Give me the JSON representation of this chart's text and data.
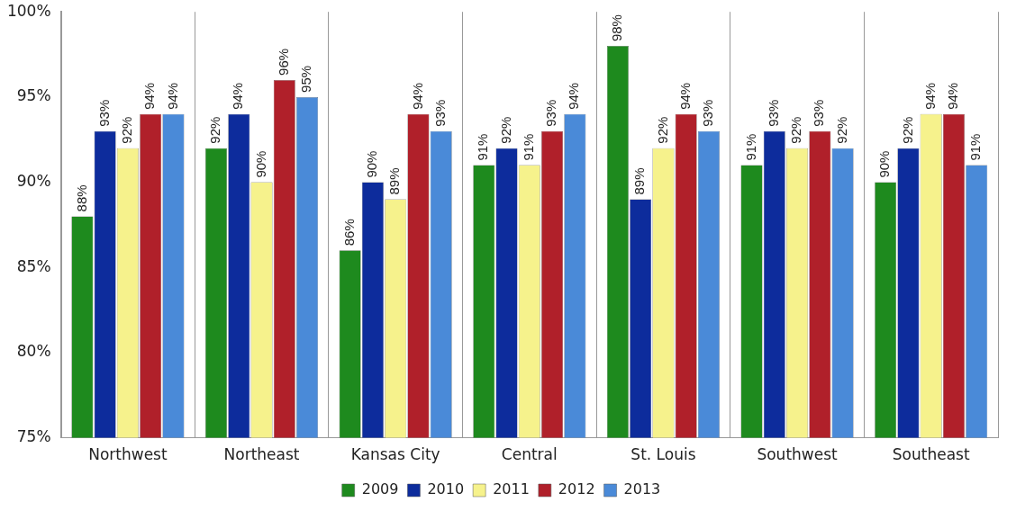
{
  "chart_data": {
    "type": "bar",
    "categories": [
      "Northwest",
      "Northeast",
      "Kansas City",
      "Central",
      "St. Louis",
      "Southwest",
      "Southeast"
    ],
    "series": [
      {
        "name": "2009",
        "color": "#1e8a1e",
        "values": [
          88,
          92,
          86,
          91,
          98,
          91,
          90
        ],
        "value_labels": [
          "88%",
          "92%",
          "86%",
          "91%",
          "98%",
          "91%",
          "90%"
        ]
      },
      {
        "name": "2010",
        "color": "#0d2c9c",
        "values": [
          93,
          94,
          90,
          92,
          89,
          93,
          92
        ],
        "value_labels": [
          "93%",
          "94%",
          "90%",
          "92%",
          "89%",
          "93%",
          "92%"
        ]
      },
      {
        "name": "2011",
        "color": "#f6f28c",
        "values": [
          92,
          90,
          89,
          91,
          92,
          92,
          94
        ],
        "value_labels": [
          "92%",
          "90%",
          "89%",
          "91%",
          "92%",
          "92%",
          "94%"
        ]
      },
      {
        "name": "2012",
        "color": "#b0202a",
        "values": [
          94,
          96,
          94,
          93,
          94,
          93,
          94
        ],
        "value_labels": [
          "94%",
          "96%",
          "94%",
          "93%",
          "94%",
          "93%",
          "94%"
        ]
      },
      {
        "name": "2013",
        "color": "#4a8ad8",
        "values": [
          94,
          95,
          93,
          94,
          93,
          92,
          91
        ],
        "value_labels": [
          "94%",
          "95%",
          "93%",
          "94%",
          "93%",
          "92%",
          "91%"
        ]
      }
    ],
    "ylim": [
      75,
      100
    ],
    "yticks": [
      {
        "value": 75,
        "label": "75%"
      },
      {
        "value": 80,
        "label": "80%"
      },
      {
        "value": 85,
        "label": "85%"
      },
      {
        "value": 90,
        "label": "90%"
      },
      {
        "value": 95,
        "label": "95%"
      },
      {
        "value": 100,
        "label": "100%"
      }
    ],
    "grid": "x",
    "legend": "bottom"
  }
}
